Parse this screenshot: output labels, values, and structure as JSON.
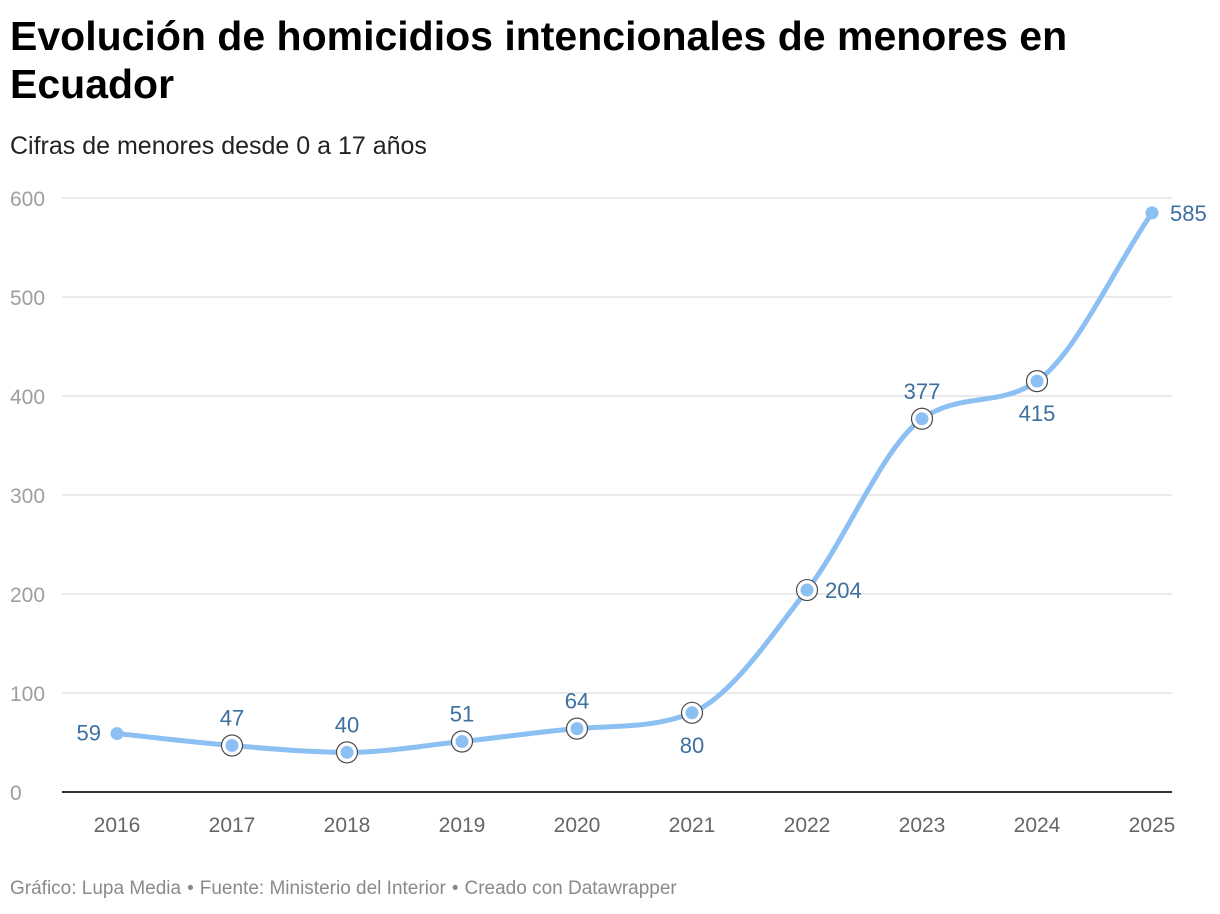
{
  "header": {
    "title": "Evolución de homicidios intencionales de menores en Ecuador",
    "subtitle": "Cifras de menores desde 0 a 17 años"
  },
  "footer": {
    "credit": "Gráfico: Lupa Media",
    "source": "Fuente: Ministerio del Interior",
    "tool": "Creado con Datawrapper",
    "separator": "•"
  },
  "colors": {
    "line": "#8cc0f3",
    "label": "#3d6f9f",
    "grid": "#e3e3e3",
    "axis_text": "#9e9e9e",
    "baseline": "#333333"
  },
  "chart_data": {
    "type": "line",
    "title": "Evolución de homicidios intencionales de menores en Ecuador",
    "subtitle": "Cifras de menores desde 0 a 17 años",
    "x": [
      "2016",
      "2017",
      "2018",
      "2019",
      "2020",
      "2021",
      "2022",
      "2023",
      "2024",
      "2025"
    ],
    "series": [
      {
        "values": [
          59,
          47,
          40,
          51,
          64,
          80,
          204,
          377,
          415,
          585
        ],
        "label_placement": [
          "left",
          "above",
          "above",
          "above",
          "above",
          "below",
          "right",
          "above",
          "below",
          "right"
        ]
      }
    ],
    "ylim": [
      0,
      600
    ],
    "yticks": [
      0,
      100,
      200,
      300,
      400,
      500,
      600
    ],
    "grid": true,
    "curve": "smooth"
  }
}
